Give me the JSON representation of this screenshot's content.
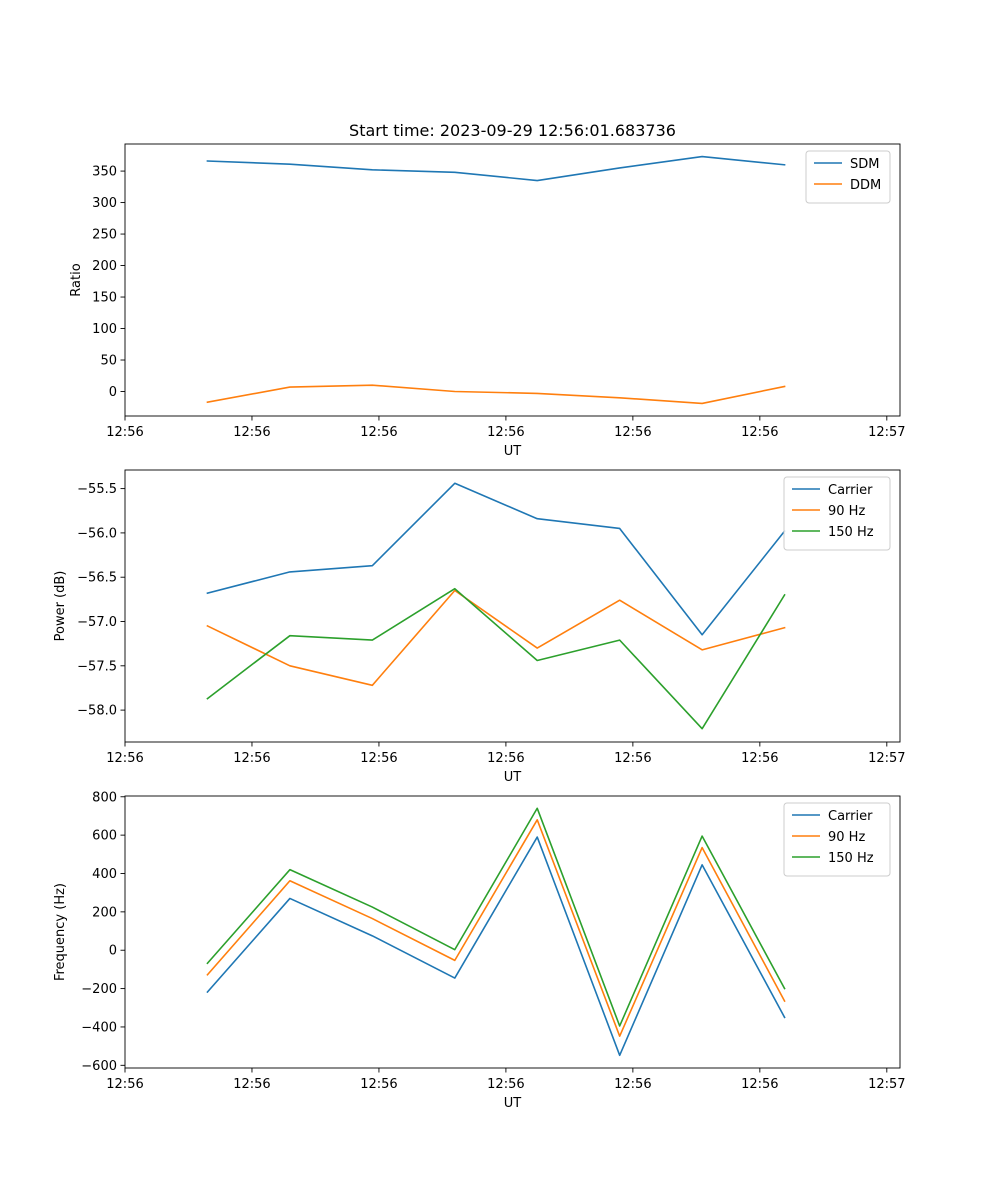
{
  "chart_data": [
    {
      "type": "line",
      "title": "Start time: 2023-09-29 12:56:01.683736",
      "xlabel": "UT",
      "ylabel": "Ratio",
      "x": [
        1,
        2,
        3,
        4,
        5,
        6,
        7,
        8
      ],
      "xlim": [
        0,
        9.4
      ],
      "xticks": [
        {
          "value": 0,
          "label": "12:56"
        },
        {
          "value": 1.54,
          "label": "12:56"
        },
        {
          "value": 3.08,
          "label": "12:56"
        },
        {
          "value": 4.62,
          "label": "12:56"
        },
        {
          "value": 6.16,
          "label": "12:56"
        },
        {
          "value": 7.7,
          "label": "12:56"
        },
        {
          "value": 9.24,
          "label": "12:57"
        }
      ],
      "ylim": [
        -38.9,
        393
      ],
      "yticks": [
        0,
        50,
        100,
        150,
        200,
        250,
        300,
        350
      ],
      "legend_position": "top-right",
      "series": [
        {
          "name": "SDM",
          "color": "#1f77b4",
          "values": [
            366,
            361,
            352,
            348,
            335,
            355,
            373,
            360
          ]
        },
        {
          "name": "DDM",
          "color": "#ff7f0e",
          "values": [
            -17,
            7,
            10,
            0,
            -3,
            -10,
            -19,
            8
          ]
        }
      ]
    },
    {
      "type": "line",
      "title": "",
      "xlabel": "UT",
      "ylabel": "Power (dB)",
      "x": [
        1,
        2,
        3,
        4,
        5,
        6,
        7,
        8
      ],
      "xlim": [
        0,
        9.4
      ],
      "xticks": [
        {
          "value": 0,
          "label": "12:56"
        },
        {
          "value": 1.54,
          "label": "12:56"
        },
        {
          "value": 3.08,
          "label": "12:56"
        },
        {
          "value": 4.62,
          "label": "12:56"
        },
        {
          "value": 6.16,
          "label": "12:56"
        },
        {
          "value": 7.7,
          "label": "12:56"
        },
        {
          "value": 9.24,
          "label": "12:57"
        }
      ],
      "ylim": [
        -58.36,
        -55.29
      ],
      "yticks": [
        {
          "value": -58.0,
          "label": "−58.0"
        },
        {
          "value": -57.5,
          "label": "−57.5"
        },
        {
          "value": -57.0,
          "label": "−57.0"
        },
        {
          "value": -56.5,
          "label": "−56.5"
        },
        {
          "value": -56.0,
          "label": "−56.0"
        },
        {
          "value": -55.5,
          "label": "−55.5"
        }
      ],
      "legend_position": "top-right",
      "series": [
        {
          "name": "Carrier",
          "color": "#1f77b4",
          "values": [
            -56.68,
            -56.44,
            -56.37,
            -55.44,
            -55.84,
            -55.95,
            -57.15,
            -55.98
          ]
        },
        {
          "name": "90 Hz",
          "color": "#ff7f0e",
          "values": [
            -57.05,
            -57.5,
            -57.72,
            -56.65,
            -57.3,
            -56.76,
            -57.32,
            -57.07
          ]
        },
        {
          "name": "150 Hz",
          "color": "#2ca02c",
          "values": [
            -57.87,
            -57.16,
            -57.21,
            -56.63,
            -57.44,
            -57.21,
            -58.21,
            -56.7
          ]
        }
      ]
    },
    {
      "type": "line",
      "title": "",
      "xlabel": "UT",
      "ylabel": "Frequency (Hz)",
      "x": [
        1,
        2,
        3,
        4,
        5,
        6,
        7,
        8
      ],
      "xlim": [
        0,
        9.4
      ],
      "xticks": [
        {
          "value": 0,
          "label": "12:56"
        },
        {
          "value": 1.54,
          "label": "12:56"
        },
        {
          "value": 3.08,
          "label": "12:56"
        },
        {
          "value": 4.62,
          "label": "12:56"
        },
        {
          "value": 6.16,
          "label": "12:56"
        },
        {
          "value": 7.7,
          "label": "12:56"
        },
        {
          "value": 9.24,
          "label": "12:57"
        }
      ],
      "ylim": [
        -614,
        804
      ],
      "yticks": [
        {
          "value": -600,
          "label": "−600"
        },
        {
          "value": -400,
          "label": "−400"
        },
        {
          "value": -200,
          "label": "−200"
        },
        {
          "value": 0,
          "label": "0"
        },
        {
          "value": 200,
          "label": "200"
        },
        {
          "value": 400,
          "label": "400"
        },
        {
          "value": 600,
          "label": "600"
        },
        {
          "value": 800,
          "label": "800"
        }
      ],
      "legend_position": "top-right",
      "series": [
        {
          "name": "Carrier",
          "color": "#1f77b4",
          "values": [
            -218,
            270,
            75,
            -145,
            590,
            -548,
            445,
            -350
          ]
        },
        {
          "name": "90 Hz",
          "color": "#ff7f0e",
          "values": [
            -128,
            362,
            165,
            -53,
            680,
            -448,
            535,
            -265
          ]
        },
        {
          "name": "150 Hz",
          "color": "#2ca02c",
          "values": [
            -68,
            420,
            225,
            3,
            740,
            -395,
            595,
            -200
          ]
        }
      ]
    }
  ]
}
